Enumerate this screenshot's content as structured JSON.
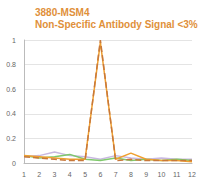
{
  "chart_data": {
    "type": "line",
    "title": "3880-MSM4",
    "subtitle": "Non-Specific Antibody Signal <3%",
    "categories": [
      1,
      2,
      3,
      4,
      5,
      6,
      7,
      8,
      9,
      10,
      11,
      12
    ],
    "series": [
      {
        "color": "#c8b8e0",
        "line_style": "solid",
        "values": [
          0.05,
          0.06,
          0.09,
          0.06,
          0.05,
          0.03,
          0.06,
          0.04,
          0.03,
          0.04,
          0.03,
          0.03
        ]
      },
      {
        "color": "#7fc96b",
        "line_style": "solid",
        "values": [
          0.06,
          0.04,
          0.05,
          0.07,
          0.03,
          0.02,
          0.04,
          0.02,
          0.03,
          0.02,
          0.03,
          0.02
        ]
      },
      {
        "color": "#f0a030",
        "line_style": "solid",
        "values": [
          0.06,
          0.05,
          0.04,
          0.03,
          0.03,
          0.98,
          0.03,
          0.08,
          0.03,
          0.02,
          0.02,
          0.01
        ]
      },
      {
        "color": "#c8783a",
        "line_style": "dashed",
        "values": [
          0.05,
          0.04,
          0.03,
          0.02,
          0.02,
          1,
          0.02,
          0.03,
          0.02,
          0.02,
          0.02,
          0.02
        ]
      }
    ],
    "ylim": [
      0,
      1
    ],
    "yticks": [
      0,
      0.2,
      0.4,
      0.6,
      0.8,
      1
    ],
    "grid": true
  }
}
